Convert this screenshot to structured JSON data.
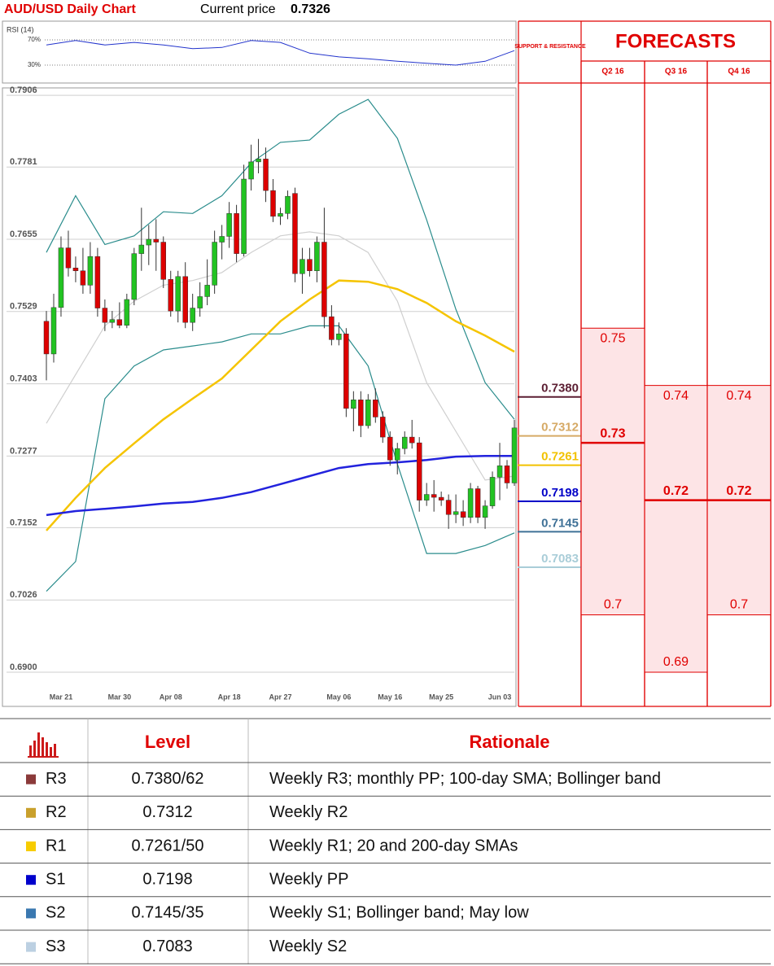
{
  "header": {
    "title": "AUD/USD Daily Chart",
    "price_label": "Current price",
    "price": 0.7326
  },
  "chart_data": [
    {
      "type": "candlestick",
      "categories": [
        null,
        null,
        "Mar 21",
        null,
        null,
        null,
        null,
        null,
        null,
        null,
        "Mar 30",
        null,
        null,
        null,
        null,
        null,
        null,
        "Apr 08",
        null,
        null,
        null,
        null,
        null,
        null,
        null,
        "Apr 18",
        null,
        null,
        null,
        null,
        null,
        null,
        "Apr 27",
        null,
        null,
        null,
        null,
        null,
        null,
        null,
        "May 06",
        null,
        null,
        null,
        null,
        null,
        null,
        "May 16",
        null,
        null,
        null,
        null,
        null,
        null,
        "May 25",
        null,
        null,
        null,
        null,
        null,
        null,
        null,
        "Jun 03",
        null,
        null
      ],
      "open": [
        0.7512,
        0.7455,
        0.7536,
        0.764,
        0.7605,
        0.76,
        0.7575,
        0.7625,
        0.7535,
        0.751,
        0.7515,
        0.7505,
        0.755,
        0.763,
        0.7645,
        0.7655,
        0.765,
        0.7585,
        0.753,
        0.759,
        0.751,
        0.7535,
        0.7555,
        0.7575,
        0.765,
        0.766,
        0.77,
        0.763,
        0.776,
        0.779,
        0.7795,
        0.774,
        0.7695,
        0.77,
        0.7735,
        0.7595,
        0.762,
        0.76,
        0.765,
        0.752,
        0.748,
        0.749,
        0.736,
        0.7375,
        0.733,
        0.7375,
        0.7345,
        0.731,
        0.727,
        0.729,
        0.731,
        0.73,
        0.72,
        0.721,
        0.7205,
        0.72,
        0.7175,
        0.718,
        0.717,
        0.722,
        0.717,
        0.719,
        0.724,
        0.726,
        0.723
      ],
      "high": [
        0.753,
        0.756,
        0.766,
        0.767,
        0.7625,
        0.764,
        0.765,
        0.764,
        0.755,
        0.753,
        0.7545,
        0.756,
        0.764,
        0.771,
        0.768,
        0.769,
        0.766,
        0.76,
        0.76,
        0.7615,
        0.756,
        0.758,
        0.762,
        0.767,
        0.768,
        0.772,
        0.7715,
        0.7785,
        0.782,
        0.783,
        0.7815,
        0.776,
        0.771,
        0.774,
        0.7745,
        0.764,
        0.764,
        0.766,
        0.771,
        0.754,
        0.751,
        0.75,
        0.739,
        0.739,
        0.7385,
        0.7395,
        0.7355,
        0.732,
        0.73,
        0.732,
        0.734,
        0.731,
        0.723,
        0.7235,
        0.7215,
        0.721,
        0.721,
        0.72,
        0.723,
        0.7225,
        0.72,
        0.725,
        0.73,
        0.727,
        0.734
      ],
      "low": [
        0.7409,
        0.744,
        0.752,
        0.759,
        0.758,
        0.756,
        0.756,
        0.752,
        0.7495,
        0.75,
        0.75,
        0.75,
        0.754,
        0.76,
        0.761,
        0.76,
        0.757,
        0.752,
        0.751,
        0.75,
        0.7495,
        0.752,
        0.754,
        0.756,
        0.762,
        0.764,
        0.7615,
        0.7625,
        0.774,
        0.777,
        0.772,
        0.7685,
        0.768,
        0.769,
        0.758,
        0.756,
        0.759,
        0.758,
        0.75,
        0.747,
        0.747,
        0.7345,
        0.732,
        0.731,
        0.7325,
        0.7335,
        0.73,
        0.726,
        0.7245,
        0.728,
        0.729,
        0.718,
        0.719,
        0.718,
        0.719,
        0.715,
        0.716,
        0.7155,
        0.716,
        0.716,
        0.715,
        0.7185,
        0.72,
        0.722,
        0.7225
      ],
      "close": [
        0.7455,
        0.7536,
        0.764,
        0.7605,
        0.76,
        0.7575,
        0.7625,
        0.7535,
        0.751,
        0.7515,
        0.7505,
        0.755,
        0.763,
        0.7645,
        0.7655,
        0.765,
        0.7585,
        0.753,
        0.759,
        0.751,
        0.7535,
        0.7555,
        0.7575,
        0.765,
        0.766,
        0.77,
        0.763,
        0.776,
        0.779,
        0.7795,
        0.774,
        0.7695,
        0.77,
        0.773,
        0.7595,
        0.762,
        0.76,
        0.765,
        0.752,
        0.748,
        0.749,
        0.736,
        0.7375,
        0.733,
        0.7375,
        0.7345,
        0.731,
        0.727,
        0.729,
        0.731,
        0.73,
        0.72,
        0.721,
        0.7205,
        0.72,
        0.7175,
        0.718,
        0.717,
        0.722,
        0.717,
        0.719,
        0.724,
        0.726,
        0.723,
        0.7326
      ],
      "up_color": "#22c322",
      "down_color": "#dd0000",
      "ylim": [
        0.6873,
        0.7919
      ],
      "yticks": [
        {
          "value": 0.69,
          "label": "0.6900"
        },
        0.7026,
        0.7152,
        0.7277,
        0.7403,
        0.7529,
        0.7655,
        0.7781,
        0.7906
      ],
      "grid": true,
      "lines": [
        {
          "color": "#cfcfcf",
          "x": [
            0,
            4,
            8,
            12,
            16,
            20,
            24,
            28,
            32,
            36,
            40,
            44,
            48,
            52,
            56,
            60,
            64
          ],
          "values": [
            0.7334,
            0.7419,
            0.7504,
            0.7547,
            0.7575,
            0.7583,
            0.7597,
            0.7632,
            0.7661,
            0.7668,
            0.7661,
            0.7632,
            0.7547,
            0.7405,
            0.732,
            0.7235,
            0.7242
          ]
        },
        {
          "color": "#2a8c8c",
          "x": [
            0,
            4,
            8,
            12,
            16,
            20,
            24,
            28,
            32,
            36,
            40,
            44,
            48,
            52,
            56,
            60,
            64
          ],
          "values": [
            0.7632,
            0.7731,
            0.7646,
            0.7661,
            0.7703,
            0.77,
            0.7731,
            0.7788,
            0.7824,
            0.7828,
            0.7873,
            0.7899,
            0.7831,
            0.7689,
            0.7533,
            0.7405,
            0.7341
          ]
        },
        {
          "color": "#2a8c8c",
          "x": [
            0,
            4,
            8,
            12,
            16,
            20,
            24,
            28,
            32,
            36,
            40,
            44,
            48,
            52,
            56,
            60,
            64
          ],
          "values": [
            0.7041,
            0.7093,
            0.7377,
            0.7434,
            0.7462,
            0.7469,
            0.7476,
            0.749,
            0.749,
            0.7504,
            0.7504,
            0.7434,
            0.7263,
            0.7107,
            0.7107,
            0.7121,
            0.7143
          ]
        },
        {
          "color": "#f5c400",
          "x": [
            0,
            4,
            8,
            12,
            16,
            20,
            24,
            28,
            32,
            36,
            40,
            44,
            48,
            52,
            56,
            60,
            64
          ],
          "values": [
            0.7147,
            0.7204,
            0.7256,
            0.7299,
            0.7341,
            0.7377,
            0.7412,
            0.7462,
            0.7512,
            0.755,
            0.7583,
            0.7581,
            0.7568,
            0.7544,
            0.7512,
            0.7487,
            0.7459
          ]
        },
        {
          "color": "#2222dd",
          "x": [
            0,
            4,
            8,
            12,
            16,
            20,
            24,
            28,
            32,
            36,
            40,
            44,
            48,
            52,
            56,
            60,
            64
          ],
          "values": [
            0.7174,
            0.7181,
            0.7185,
            0.7189,
            0.7194,
            0.7197,
            0.7204,
            0.7214,
            0.7228,
            0.7242,
            0.7256,
            0.7263,
            0.7266,
            0.727,
            0.7276,
            0.7277,
            0.7277
          ]
        }
      ],
      "levels": [
        {
          "value": 0.738,
          "label": "0.7380",
          "color": "#5c1f33"
        },
        {
          "value": 0.7312,
          "label": "0.7312",
          "color": "#d6aa66"
        },
        {
          "value": 0.7261,
          "label": "0.7261",
          "color": "#f2c200"
        },
        {
          "value": 0.7198,
          "label": "0.7198",
          "color": "#0000c8"
        },
        {
          "value": 0.7145,
          "label": "0.7145",
          "color": "#3f7197"
        },
        {
          "value": 0.7083,
          "label": "0.7083",
          "color": "#a9cdd8"
        }
      ]
    },
    {
      "type": "line",
      "title": "RSI (14)",
      "x": [
        0,
        4,
        8,
        12,
        16,
        20,
        24,
        28,
        32,
        36,
        40,
        44,
        48,
        52,
        56,
        60,
        64
      ],
      "values": [
        62,
        69,
        62,
        66,
        62,
        56,
        58,
        69,
        66,
        49,
        43,
        40,
        36,
        33,
        30,
        36,
        53
      ],
      "color": "#2233cc",
      "xlim": [
        0,
        64
      ],
      "ylim": [
        0,
        100
      ],
      "yticks": [
        {
          "value": 70,
          "label": "70%"
        },
        {
          "value": 30,
          "label": "30%"
        }
      ]
    }
  ],
  "forecasts": {
    "title": "FORECASTS",
    "support_label": "SUPPORT & RESISTANCE",
    "quarters": [
      {
        "name": "Q2 16",
        "high": 0.75,
        "mid": 0.73,
        "low": 0.7
      },
      {
        "name": "Q3 16",
        "high": 0.74,
        "mid": 0.72,
        "low": 0.69
      },
      {
        "name": "Q4 16",
        "high": 0.74,
        "mid": 0.72,
        "low": 0.7
      }
    ]
  },
  "table": {
    "header": [
      "Level",
      "Rationale"
    ],
    "rows": [
      {
        "name": "R3",
        "color": "#8b3a3a",
        "level": "0.7380/62",
        "rationale": "Weekly R3; monthly PP; 100-day SMA; Bollinger band"
      },
      {
        "name": "R2",
        "color": "#c9a02c",
        "level": "0.7312",
        "rationale": "Weekly R2"
      },
      {
        "name": "R1",
        "color": "#f7cc00",
        "level": "0.7261/50",
        "rationale": "Weekly R1; 20 and 200-day SMAs"
      },
      {
        "name": "S1",
        "color": "#0000cc",
        "level": "0.7198",
        "rationale": "Weekly PP"
      },
      {
        "name": "S2",
        "color": "#3a78b0",
        "level": "0.7145/35",
        "rationale": "Weekly S1; Bollinger band; May low"
      },
      {
        "name": "S3",
        "color": "#bcd0e2",
        "level": "0.7083",
        "rationale": "Weekly S2"
      }
    ]
  }
}
